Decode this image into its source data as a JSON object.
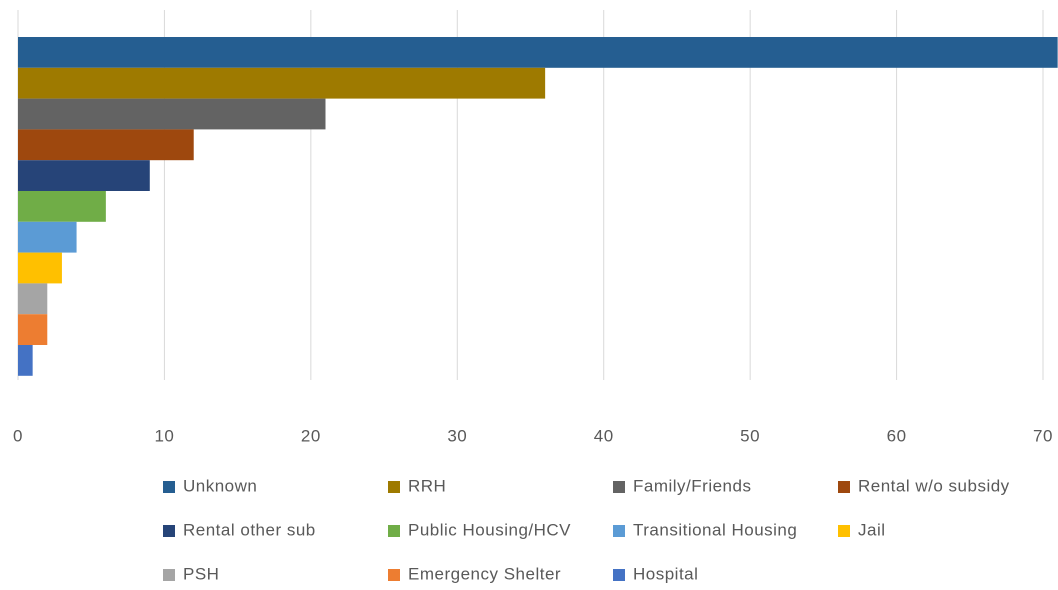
{
  "chart_data": {
    "type": "bar",
    "orientation": "horizontal",
    "categories": [
      null
    ],
    "series": [
      {
        "name": "Unknown",
        "color": "#255e91",
        "values": [
          71
        ]
      },
      {
        "name": "RRH",
        "color": "#9e7a00",
        "values": [
          36
        ]
      },
      {
        "name": "Family/Friends",
        "color": "#636363",
        "values": [
          21
        ]
      },
      {
        "name": "Rental w/o subsidy",
        "color": "#9e480e",
        "values": [
          12
        ]
      },
      {
        "name": "Rental other sub",
        "color": "#264478",
        "values": [
          9
        ]
      },
      {
        "name": "Public Housing/HCV",
        "color": "#70ad47",
        "values": [
          6
        ]
      },
      {
        "name": "Transitional Housing",
        "color": "#5b9bd5",
        "values": [
          4
        ]
      },
      {
        "name": "Jail",
        "color": "#ffc000",
        "values": [
          3
        ]
      },
      {
        "name": "PSH",
        "color": "#a5a5a5",
        "values": [
          2
        ]
      },
      {
        "name": "Emergency Shelter",
        "color": "#ed7d31",
        "values": [
          2
        ]
      },
      {
        "name": "Hospital",
        "color": "#4472c4",
        "values": [
          1
        ]
      }
    ],
    "xlim": [
      0,
      70
    ],
    "xticks": [
      0,
      10,
      20,
      30,
      40,
      50,
      60,
      70
    ],
    "grid": true,
    "legend": "bottom"
  }
}
